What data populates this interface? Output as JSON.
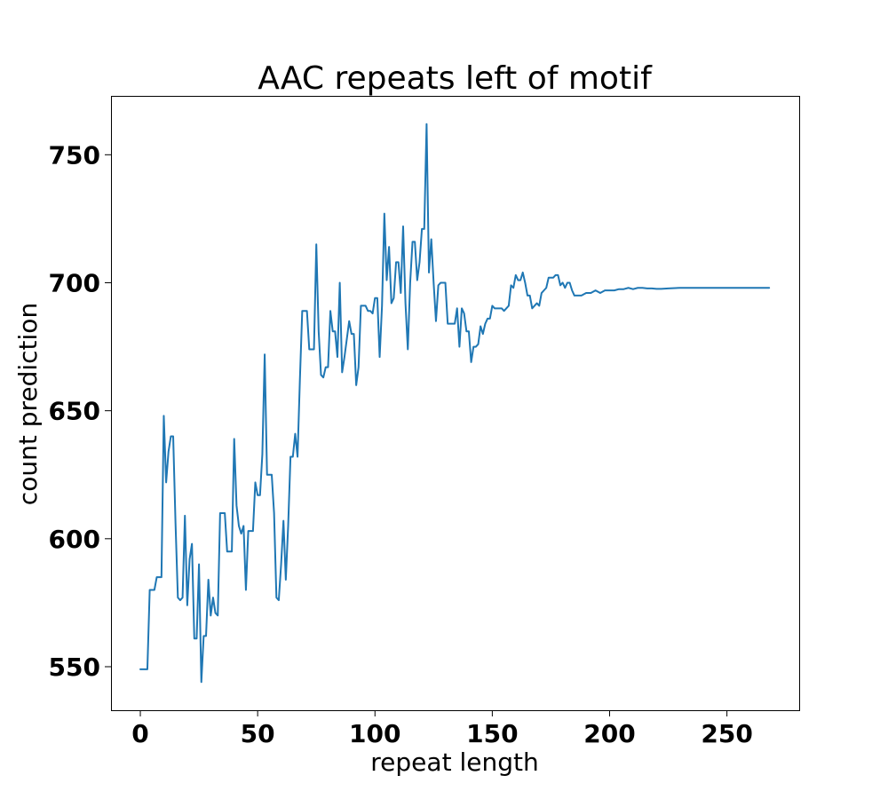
{
  "chart_data": {
    "type": "line",
    "title": "AAC repeats left of motif",
    "xlabel": "repeat length",
    "ylabel": "count prediction",
    "xlim": [
      -12.5,
      280.8
    ],
    "ylim": [
      533,
      773
    ],
    "xticks": [
      0,
      50,
      100,
      150,
      200,
      250
    ],
    "yticks": [
      550,
      600,
      650,
      700,
      750
    ],
    "grid": false,
    "line_color": "#1f77b4",
    "series": [
      {
        "x": [
          0,
          1,
          2,
          3,
          4,
          5,
          6,
          7,
          8,
          9,
          10,
          11,
          12,
          13,
          14,
          15,
          16,
          17,
          18,
          19,
          20,
          21,
          22,
          23,
          24,
          25,
          26,
          27,
          28,
          29,
          30,
          31,
          32,
          33,
          34,
          35,
          36,
          37,
          38,
          39,
          40,
          41,
          42,
          43,
          44,
          45,
          46,
          47,
          48,
          49,
          50,
          51,
          52,
          53,
          54,
          55,
          56,
          57,
          58,
          59,
          60,
          61,
          62,
          63,
          64,
          65,
          66,
          67,
          68,
          69,
          70,
          71,
          72,
          73,
          74,
          75,
          76,
          77,
          78,
          79,
          80,
          81,
          82,
          83,
          84,
          85,
          86,
          87,
          88,
          89,
          90,
          91,
          92,
          93,
          94,
          95,
          96,
          97,
          98,
          99,
          100,
          101,
          102,
          103,
          104,
          105,
          106,
          107,
          108,
          109,
          110,
          111,
          112,
          113,
          114,
          115,
          116,
          117,
          118,
          119,
          120,
          121,
          122,
          123,
          124,
          125,
          126,
          127,
          128,
          129,
          130,
          131,
          132,
          133,
          134,
          135,
          136,
          137,
          138,
          139,
          140,
          141,
          142,
          143,
          144,
          145,
          146,
          147,
          148,
          149,
          150,
          151,
          152,
          153,
          154,
          155,
          156,
          157,
          158,
          159,
          160,
          161,
          162,
          163,
          164,
          165,
          166,
          167,
          168,
          169,
          170,
          171,
          172,
          173,
          174,
          175,
          176,
          177,
          178,
          179,
          180,
          181,
          182,
          183,
          184,
          185,
          186,
          187,
          188,
          190,
          192,
          194,
          196,
          198,
          200,
          202,
          204,
          206,
          208,
          210,
          212,
          214,
          216,
          218,
          220,
          222,
          225,
          230,
          235,
          240,
          245,
          250,
          255,
          260,
          265,
          268
        ],
        "y": [
          549,
          549,
          549,
          549,
          580,
          580,
          580,
          585,
          585,
          585,
          648,
          622,
          634,
          640,
          640,
          606,
          577,
          576,
          577,
          609,
          574,
          592,
          598,
          561,
          561,
          590,
          544,
          562,
          562,
          584,
          570,
          577,
          571,
          570,
          610,
          610,
          610,
          595,
          595,
          595,
          639,
          613,
          605,
          602,
          605,
          580,
          603,
          603,
          603,
          622,
          617,
          617,
          633,
          672,
          625,
          625,
          625,
          610,
          577,
          576,
          590,
          607,
          584,
          605,
          632,
          632,
          641,
          632,
          662,
          689,
          689,
          689,
          674,
          674,
          674,
          715,
          681,
          664,
          663,
          667,
          667,
          689,
          681,
          681,
          671,
          700,
          665,
          671,
          678,
          685,
          680,
          680,
          660,
          667,
          691,
          691,
          691,
          689,
          689,
          688,
          694,
          694,
          671,
          691,
          727,
          701,
          714,
          692,
          694,
          708,
          708,
          696,
          722,
          692,
          674,
          700,
          716,
          716,
          701,
          708,
          721,
          721,
          762,
          704,
          717,
          700,
          685,
          699,
          700,
          700,
          700,
          684,
          684,
          684,
          684,
          690,
          675,
          690,
          688,
          681,
          681,
          669,
          675,
          675,
          676,
          683,
          680,
          684,
          686,
          686,
          691,
          690,
          690,
          690,
          690,
          689,
          690,
          691,
          699,
          698,
          703,
          701,
          701,
          704,
          700,
          695,
          695,
          690,
          691,
          692,
          691,
          696,
          697,
          698,
          702,
          702,
          702,
          703,
          703,
          699,
          700,
          698,
          700,
          700,
          697,
          695,
          695,
          695,
          695,
          696,
          696,
          697,
          696,
          697,
          697,
          697,
          697.5,
          697.5,
          698,
          697.5,
          698,
          698,
          697.8,
          697.8,
          697.6,
          697.6,
          697.8,
          698,
          698,
          698,
          698,
          698,
          698,
          698,
          698,
          698
        ]
      }
    ]
  }
}
